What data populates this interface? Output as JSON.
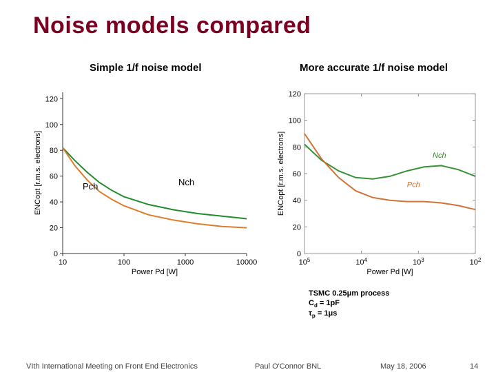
{
  "title": "Noise models compared",
  "title_color": "#7a0022",
  "left_chart": {
    "subtitle": "Simple 1/f noise model",
    "type": "line",
    "xlabel": "Power Pd [W]",
    "ylabel": "ENCopt [r.m.s. electrons]",
    "xticks": [
      10,
      100,
      1000,
      10000
    ],
    "yticks": [
      0,
      20,
      40,
      60,
      80,
      100,
      120
    ],
    "ylim": [
      0,
      125
    ],
    "xlim_log10": [
      1,
      4
    ],
    "axis_color": "#333333",
    "grid": false,
    "background": "#ffffff",
    "label_fontsize": 11,
    "tick_fontsize": 11,
    "line_width": 2,
    "series": [
      {
        "name": "Nch",
        "label_text": "Nch",
        "color": "#1f8c2e",
        "points": {
          "x_log10": [
            1.0,
            1.2,
            1.4,
            1.6,
            1.8,
            2.0,
            2.4,
            2.8,
            3.2,
            3.6,
            4.0
          ],
          "y": [
            82,
            72,
            63,
            55,
            49,
            44,
            38,
            34,
            31,
            29,
            27
          ]
        }
      },
      {
        "name": "Pch",
        "label_text": "Pch",
        "color": "#e07b28",
        "points": {
          "x_log10": [
            1.0,
            1.2,
            1.4,
            1.6,
            1.8,
            2.0,
            2.4,
            2.8,
            3.2,
            3.6,
            4.0
          ],
          "y": [
            82,
            68,
            57,
            48,
            42,
            37,
            30,
            26,
            23,
            21,
            20
          ]
        }
      }
    ],
    "inline_label_pch": "Pch",
    "inline_label_nch": "Nch",
    "inline_label_color": "#000000"
  },
  "right_chart": {
    "subtitle": "More accurate 1/f noise model",
    "type": "line",
    "xlabel": "Power Pd [W]",
    "ylabel": "ENCopt [r.m.s. electrons]",
    "xticks_labels": [
      "10^5",
      "10^4",
      "10^3",
      "10^2"
    ],
    "xticks_pos_log10": [
      0,
      1,
      2,
      3
    ],
    "yticks": [
      0,
      20,
      40,
      60,
      80,
      100,
      120
    ],
    "ylim": [
      0,
      120
    ],
    "xlim_idx": [
      0,
      3
    ],
    "axis_color": "#8a8a8a",
    "border_color": "#9a9a9a",
    "grid": false,
    "background": "#ffffff",
    "label_fontsize": 11,
    "tick_fontsize": 11,
    "line_width": 2,
    "line_blur": 0.6,
    "series": [
      {
        "name": "Nch",
        "label_text": "Nch",
        "label_color": "#2a8a2a",
        "color": "#2a8a2a",
        "points": {
          "x_idx": [
            0.0,
            0.3,
            0.6,
            0.9,
            1.2,
            1.5,
            1.8,
            2.1,
            2.4,
            2.7,
            3.0
          ],
          "y": [
            82,
            70,
            62,
            57,
            56,
            58,
            62,
            65,
            66,
            63,
            58
          ]
        }
      },
      {
        "name": "Pch",
        "label_text": "Pch",
        "label_color": "#cc6a2a",
        "color": "#cc6a2a",
        "points": {
          "x_idx": [
            0.0,
            0.3,
            0.6,
            0.9,
            1.2,
            1.5,
            1.8,
            2.1,
            2.4,
            2.7,
            3.0
          ],
          "y": [
            90,
            71,
            57,
            47,
            42,
            40,
            39,
            39,
            38,
            36,
            33
          ]
        }
      }
    ]
  },
  "process_box": {
    "line1": "TSMC 0.25μm process",
    "line2_pre": "C",
    "line2_sub": "d",
    "line2_post": " = 1pF",
    "line3_pre": "τ",
    "line3_sub": "p",
    "line3_post": " = 1μs",
    "color": "#000000"
  },
  "footer": {
    "left": "VIth International Meeting on Front End Electronics",
    "center": "Paul O'Connor BNL",
    "date": "May 18, 2006",
    "page": "14",
    "color": "#444444"
  }
}
